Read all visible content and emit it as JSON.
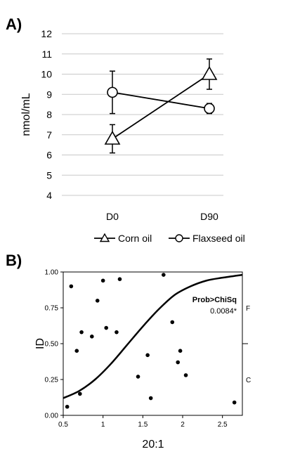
{
  "chart_data": [
    {
      "type": "line",
      "panel_label": "A)",
      "categories": [
        "D0",
        "D90"
      ],
      "ylabel": "nmol/mL",
      "ylim": [
        4,
        12
      ],
      "yticks": [
        "4",
        "5",
        "6",
        "7",
        "8",
        "9",
        "10",
        "11",
        "12"
      ],
      "grid": true,
      "legend_position": "bottom",
      "series": [
        {
          "name": "Corn oil",
          "marker": "triangle",
          "values": [
            6.8,
            10.0
          ],
          "error": [
            0.7,
            0.75
          ]
        },
        {
          "name": "Flaxseed oil",
          "marker": "circle",
          "values": [
            9.1,
            8.3
          ],
          "error": [
            1.05,
            0.25
          ]
        }
      ]
    },
    {
      "type": "scatter",
      "panel_label": "B)",
      "xlabel": "20:1",
      "ylabel": "ID",
      "xlim": [
        0.5,
        2.75
      ],
      "ylim": [
        0,
        1
      ],
      "xticks": [
        "0.5",
        "1",
        "1.5",
        "2",
        "2.5"
      ],
      "yticks": [
        "0.00",
        "0.25",
        "0.50",
        "0.75",
        "1.00"
      ],
      "right_labels": [
        "F",
        "C"
      ],
      "annotation_title": "Prob>ChiSq",
      "annotation_value": "0.0084*",
      "points": [
        {
          "x": 0.55,
          "y": 0.06
        },
        {
          "x": 0.6,
          "y": 0.9
        },
        {
          "x": 0.67,
          "y": 0.45
        },
        {
          "x": 0.71,
          "y": 0.15
        },
        {
          "x": 0.73,
          "y": 0.58
        },
        {
          "x": 0.86,
          "y": 0.55
        },
        {
          "x": 0.93,
          "y": 0.8
        },
        {
          "x": 1.0,
          "y": 0.94
        },
        {
          "x": 1.04,
          "y": 0.61
        },
        {
          "x": 1.17,
          "y": 0.58
        },
        {
          "x": 1.21,
          "y": 0.95
        },
        {
          "x": 1.44,
          "y": 0.27
        },
        {
          "x": 1.56,
          "y": 0.42
        },
        {
          "x": 1.6,
          "y": 0.12
        },
        {
          "x": 1.76,
          "y": 0.98
        },
        {
          "x": 1.87,
          "y": 0.65
        },
        {
          "x": 1.94,
          "y": 0.37
        },
        {
          "x": 1.97,
          "y": 0.45
        },
        {
          "x": 2.04,
          "y": 0.28
        },
        {
          "x": 2.65,
          "y": 0.09
        }
      ],
      "fit_curve": [
        {
          "x": 0.5,
          "y": 0.12
        },
        {
          "x": 0.7,
          "y": 0.17
        },
        {
          "x": 0.9,
          "y": 0.25
        },
        {
          "x": 1.1,
          "y": 0.36
        },
        {
          "x": 1.3,
          "y": 0.49
        },
        {
          "x": 1.5,
          "y": 0.62
        },
        {
          "x": 1.7,
          "y": 0.74
        },
        {
          "x": 1.9,
          "y": 0.84
        },
        {
          "x": 2.1,
          "y": 0.9
        },
        {
          "x": 2.3,
          "y": 0.94
        },
        {
          "x": 2.5,
          "y": 0.96
        },
        {
          "x": 2.75,
          "y": 0.98
        }
      ]
    }
  ]
}
